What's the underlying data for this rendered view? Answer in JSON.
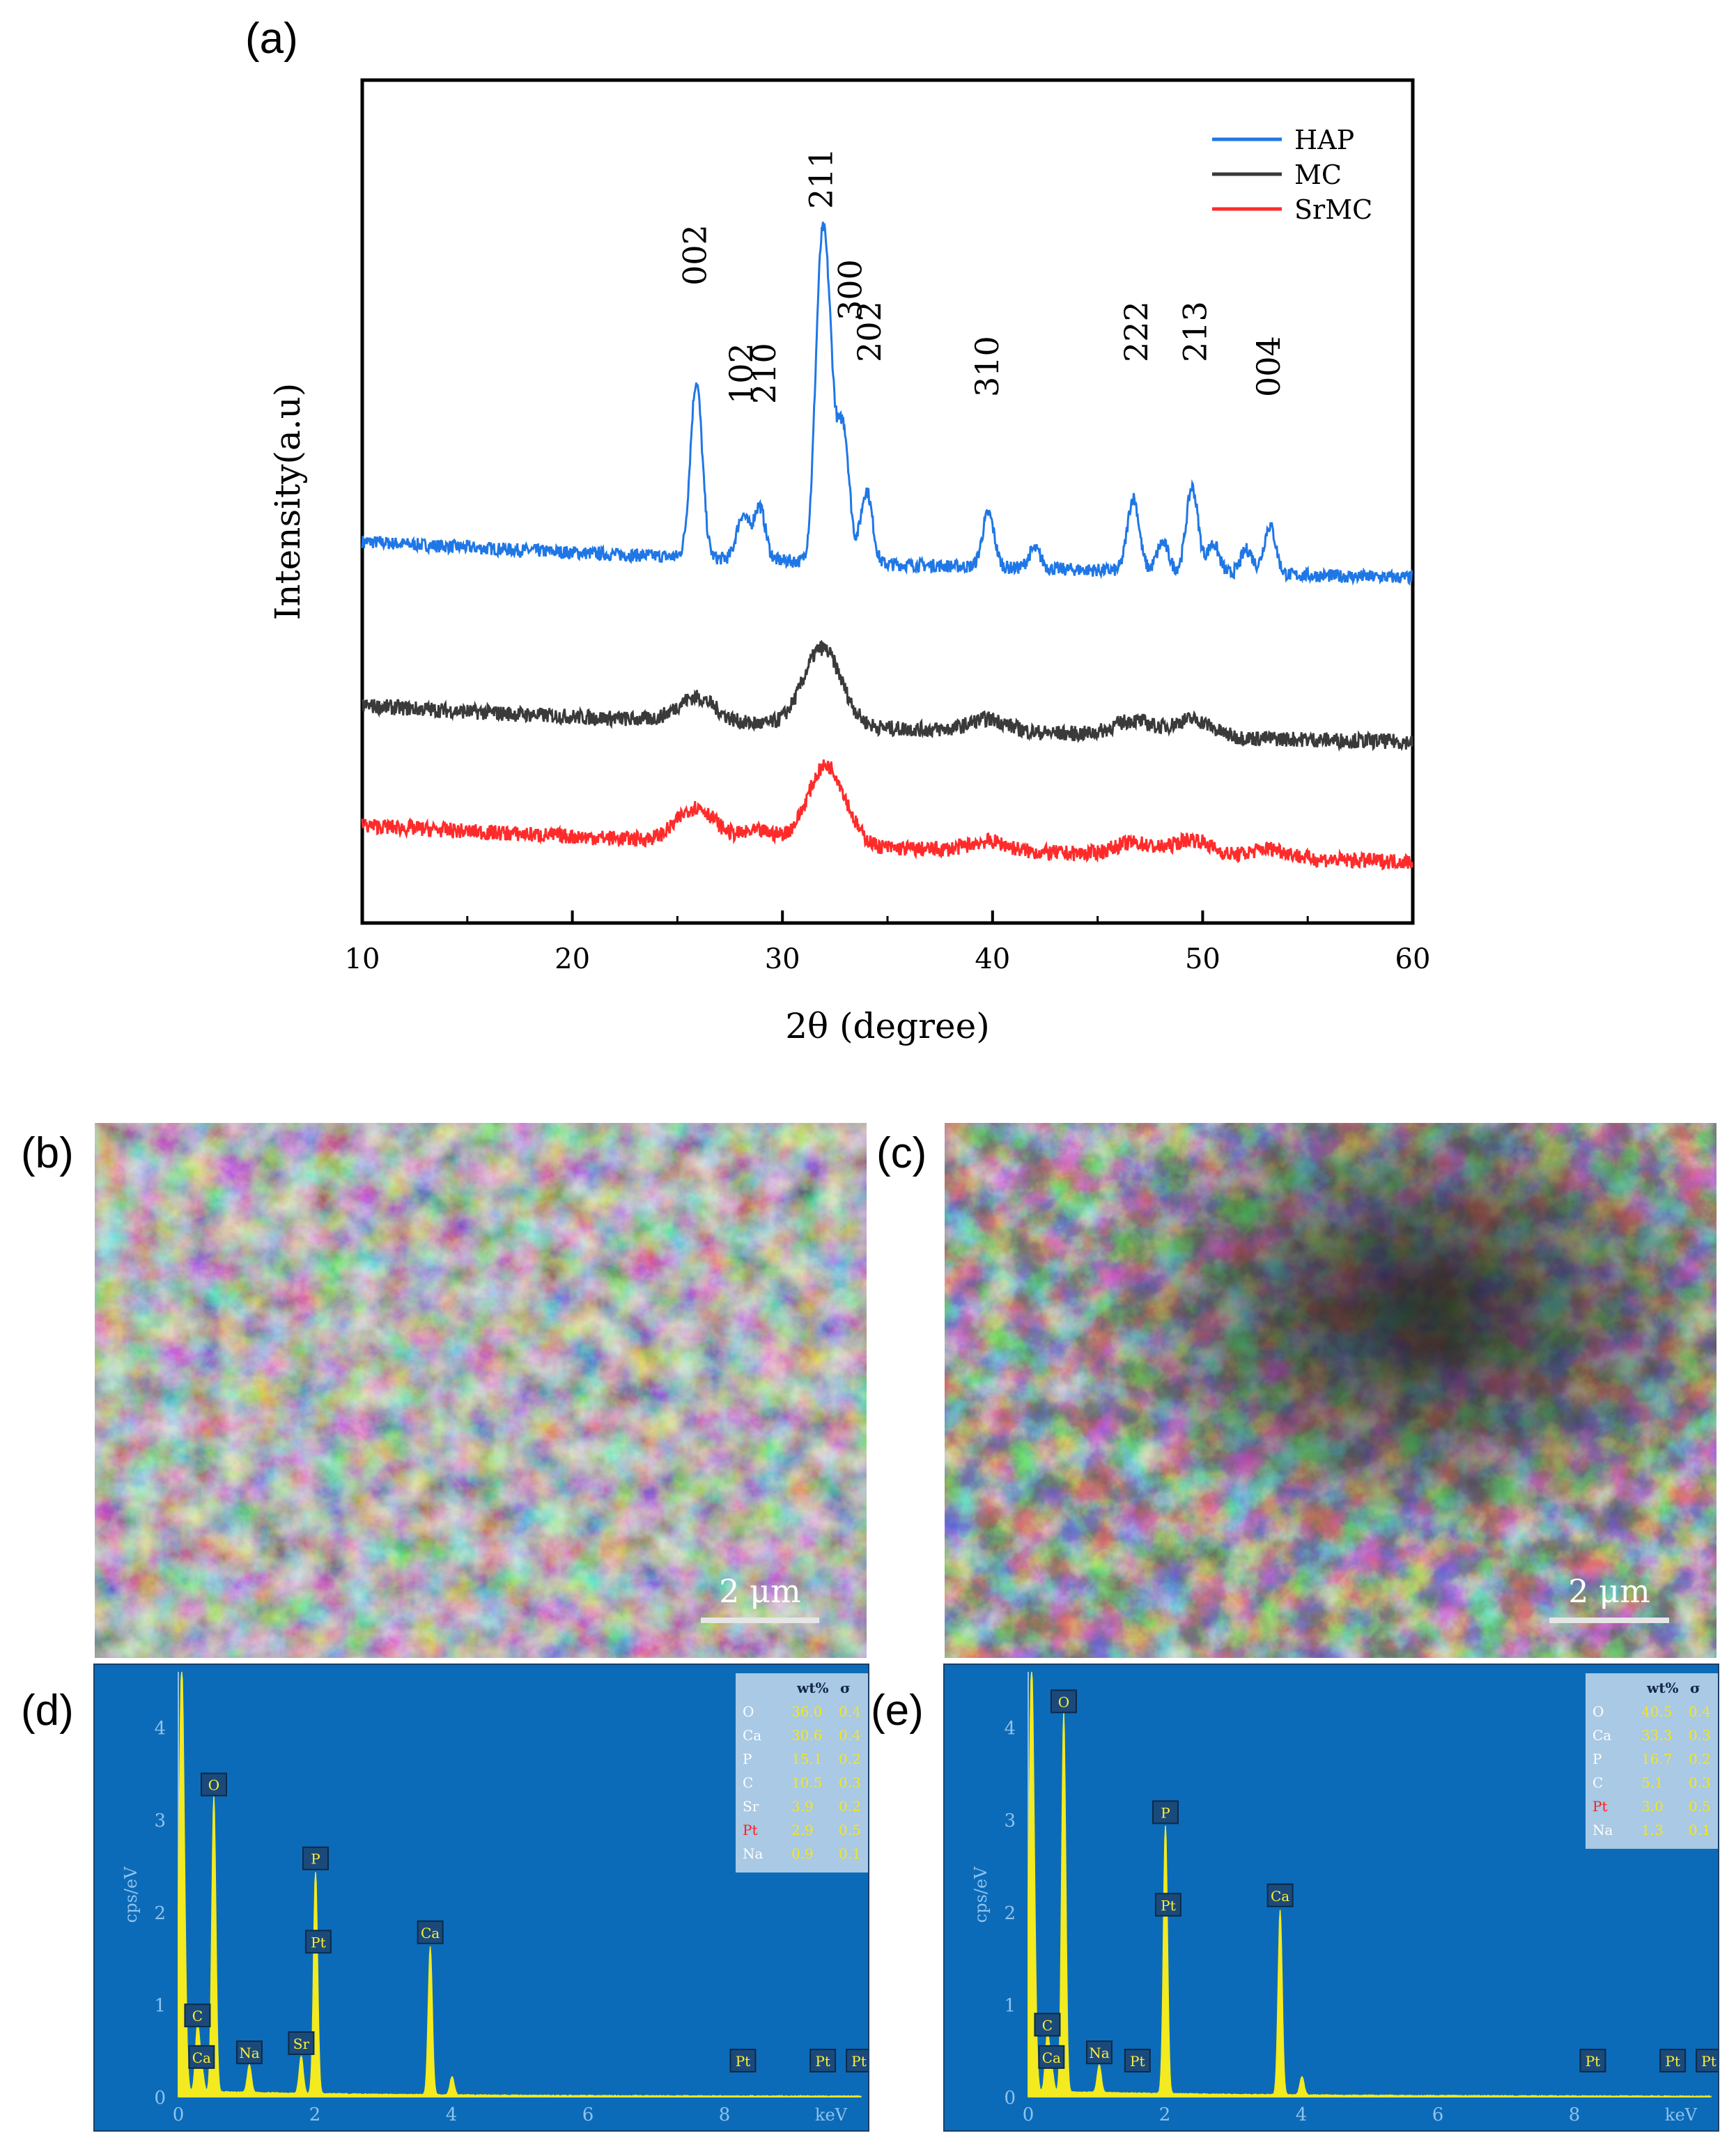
{
  "labels": {
    "a": "(a)",
    "b": "(b)",
    "c": "(c)",
    "d": "(d)",
    "e": "(e)"
  },
  "colors": {
    "HAP": "#1f77e6",
    "MC": "#3a3a3a",
    "SrMC": "#ff2b2b",
    "eds_bg": "#0c6bb8",
    "eds_trace": "#f3ea1f",
    "eds_text": "#ffef3a",
    "eds_table_bg": "#a9c9e4"
  },
  "chart_data": {
    "type": "line",
    "xlabel": "2θ (degree)",
    "ylabel": "Intensity(a.u)",
    "xlim": [
      10,
      60
    ],
    "xticks": [
      10,
      20,
      30,
      40,
      50,
      60
    ],
    "legend_position": "top-right",
    "series": [
      {
        "name": "HAP",
        "baseline": 0.82,
        "peaks": [
          [
            25.9,
            0.72
          ],
          [
            28.1,
            0.18
          ],
          [
            28.9,
            0.22
          ],
          [
            31.8,
            1.0
          ],
          [
            32.2,
            0.75
          ],
          [
            32.9,
            0.55
          ],
          [
            34.0,
            0.3
          ],
          [
            39.8,
            0.22
          ],
          [
            42.0,
            0.08
          ],
          [
            46.7,
            0.3
          ],
          [
            48.1,
            0.12
          ],
          [
            49.5,
            0.35
          ],
          [
            50.5,
            0.12
          ],
          [
            52.1,
            0.1
          ],
          [
            53.2,
            0.2
          ]
        ]
      },
      {
        "name": "MC",
        "baseline": 0.45,
        "peaks": [
          [
            25.9,
            0.1
          ],
          [
            31.9,
            0.32
          ],
          [
            39.8,
            0.05
          ],
          [
            46.7,
            0.06
          ],
          [
            49.5,
            0.07
          ]
        ]
      },
      {
        "name": "SrMC",
        "baseline": 0.18,
        "peaks": [
          [
            25.9,
            0.14
          ],
          [
            28.9,
            0.05
          ],
          [
            32.1,
            0.33
          ],
          [
            39.8,
            0.04
          ],
          [
            46.7,
            0.05
          ],
          [
            49.5,
            0.07
          ],
          [
            53.2,
            0.04
          ]
        ]
      }
    ],
    "peak_labels": [
      {
        "text": "002",
        "x": 25.9
      },
      {
        "text": "102",
        "x": 28.1
      },
      {
        "text": "210",
        "x": 29.2
      },
      {
        "text": "211",
        "x": 31.9
      },
      {
        "text": "300",
        "x": 33.3
      },
      {
        "text": "202",
        "x": 34.2
      },
      {
        "text": "310",
        "x": 39.8
      },
      {
        "text": "222",
        "x": 46.9
      },
      {
        "text": "213",
        "x": 49.7
      },
      {
        "text": "004",
        "x": 53.2
      }
    ]
  },
  "sem": {
    "b_scale": "2 μm",
    "c_scale": "2 μm"
  },
  "eds": {
    "ylabel": "cps/eV",
    "xlabel": "keV",
    "xticks": [
      "0",
      "2",
      "4",
      "6",
      "8"
    ],
    "yticks": [
      "0",
      "1",
      "2",
      "3",
      "4"
    ],
    "table_header": [
      "",
      "wt%",
      "σ"
    ],
    "d": {
      "rows": [
        [
          "O",
          "36.0",
          "0.4"
        ],
        [
          "Ca",
          "30.6",
          "0.4"
        ],
        [
          "P",
          "15.1",
          "0.2"
        ],
        [
          "C",
          "10.5",
          "0.3"
        ],
        [
          "Sr",
          "3.9",
          "0.2"
        ],
        [
          "Pt",
          "2.9",
          "0.5"
        ],
        [
          "Na",
          "0.9",
          "0.1"
        ]
      ],
      "peaks": [
        {
          "label": "O",
          "kev": 0.52,
          "cps": 3.2
        },
        {
          "label": "C",
          "kev": 0.28,
          "cps": 0.7
        },
        {
          "label": "Ca",
          "kev": 0.34,
          "cps": 0.25
        },
        {
          "label": "Na",
          "kev": 1.04,
          "cps": 0.3
        },
        {
          "label": "Sr",
          "kev": 1.8,
          "cps": 0.4
        },
        {
          "label": "P",
          "kev": 2.01,
          "cps": 2.4
        },
        {
          "label": "Pt",
          "kev": 2.05,
          "cps": 1.8
        },
        {
          "label": "Ca",
          "kev": 3.69,
          "cps": 1.6
        },
        {
          "label": "Pt",
          "kev": 8.27,
          "cps": 0.05
        },
        {
          "label": "Pt",
          "kev": 9.44,
          "cps": 0.05
        },
        {
          "label": "Pt",
          "kev": 9.97,
          "cps": 0.05
        }
      ]
    },
    "e": {
      "rows": [
        [
          "O",
          "40.5",
          "0.4"
        ],
        [
          "Ca",
          "33.3",
          "0.3"
        ],
        [
          "P",
          "16.7",
          "0.2"
        ],
        [
          "C",
          "5.1",
          "0.3"
        ],
        [
          "Pt",
          "3.0",
          "0.5"
        ],
        [
          "Na",
          "1.3",
          "0.1"
        ]
      ],
      "peaks": [
        {
          "label": "O",
          "kev": 0.52,
          "cps": 4.1
        },
        {
          "label": "C",
          "kev": 0.28,
          "cps": 0.6
        },
        {
          "label": "Ca",
          "kev": 0.34,
          "cps": 0.25
        },
        {
          "label": "Na",
          "kev": 1.04,
          "cps": 0.3
        },
        {
          "label": "Pt",
          "kev": 1.6,
          "cps": 0.08
        },
        {
          "label": "P",
          "kev": 2.01,
          "cps": 2.9
        },
        {
          "label": "Pt",
          "kev": 2.05,
          "cps": 2.2
        },
        {
          "label": "Ca",
          "kev": 3.69,
          "cps": 2.0
        },
        {
          "label": "Pt",
          "kev": 8.27,
          "cps": 0.05
        },
        {
          "label": "Pt",
          "kev": 9.44,
          "cps": 0.05
        },
        {
          "label": "Pt",
          "kev": 9.97,
          "cps": 0.05
        }
      ]
    }
  }
}
